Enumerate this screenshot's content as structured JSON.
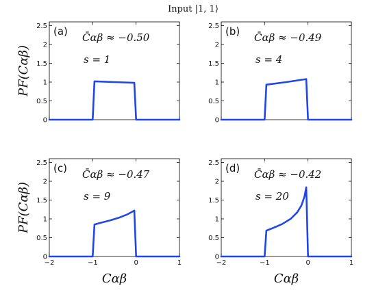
{
  "figure_title": "Input |1, 1⟩",
  "chart_data": [
    {
      "type": "line",
      "panel_label": "(a)",
      "annotation_c": "C̄αβ ≈ −0.50",
      "annotation_s": "s = 1",
      "ylabel": "PF(Cαβ)",
      "xlabel": "",
      "xlim": [
        -2,
        1
      ],
      "ylim": [
        0,
        2.6
      ],
      "xticks": [
        "−2",
        "−1",
        "0",
        "1"
      ],
      "yticks": [
        "0",
        "0.5",
        "1",
        "1.5",
        "2",
        "2.5"
      ],
      "show_xtick_labels": false,
      "series": [
        {
          "color": "#2045e8",
          "x": [
            -2,
            -1.0,
            -0.96,
            -0.5,
            -0.04,
            0.0,
            1
          ],
          "y": [
            0,
            0,
            1.02,
            1.0,
            0.98,
            0,
            0
          ]
        }
      ]
    },
    {
      "type": "line",
      "panel_label": "(b)",
      "annotation_c": "C̄αβ ≈ −0.49",
      "annotation_s": "s = 4",
      "ylabel": "",
      "xlabel": "",
      "xlim": [
        -2,
        1
      ],
      "ylim": [
        0,
        2.6
      ],
      "xticks": [
        "−2",
        "−1",
        "0",
        "1"
      ],
      "yticks": [
        "0",
        "0.5",
        "1",
        "1.5",
        "2",
        "2.5"
      ],
      "show_xtick_labels": false,
      "series": [
        {
          "color": "#2045e8",
          "x": [
            -2,
            -1.0,
            -0.96,
            -0.5,
            -0.04,
            0.0,
            1
          ],
          "y": [
            0,
            0,
            0.93,
            1.0,
            1.08,
            0,
            0
          ]
        }
      ]
    },
    {
      "type": "line",
      "panel_label": "(c)",
      "annotation_c": "C̄αβ ≈ −0.47",
      "annotation_s": "s = 9",
      "ylabel": "PF(Cαβ)",
      "xlabel": "Cαβ",
      "xlim": [
        -2,
        1
      ],
      "ylim": [
        0,
        2.6
      ],
      "xticks": [
        "−2",
        "−1",
        "0",
        "1"
      ],
      "yticks": [
        "0",
        "0.5",
        "1",
        "1.5",
        "2",
        "2.5"
      ],
      "show_xtick_labels": true,
      "series": [
        {
          "color": "#2045e8",
          "x": [
            -2,
            -1.0,
            -0.96,
            -0.8,
            -0.6,
            -0.4,
            -0.2,
            -0.04,
            0.0,
            1
          ],
          "y": [
            0,
            0,
            0.85,
            0.9,
            0.96,
            1.03,
            1.12,
            1.22,
            0,
            0
          ]
        }
      ]
    },
    {
      "type": "line",
      "panel_label": "(d)",
      "annotation_c": "C̄αβ ≈ −0.42",
      "annotation_s": "s = 20",
      "ylabel": "",
      "xlabel": "Cαβ",
      "xlim": [
        -2,
        1
      ],
      "ylim": [
        0,
        2.6
      ],
      "xticks": [
        "−2",
        "−1",
        "0",
        "1"
      ],
      "yticks": [
        "0",
        "0.5",
        "1",
        "1.5",
        "2",
        "2.5"
      ],
      "show_xtick_labels": true,
      "series": [
        {
          "color": "#2045e8",
          "x": [
            -2,
            -1.0,
            -0.96,
            -0.8,
            -0.6,
            -0.4,
            -0.25,
            -0.15,
            -0.08,
            -0.04,
            0.0,
            1
          ],
          "y": [
            0,
            0,
            0.69,
            0.76,
            0.86,
            1.0,
            1.17,
            1.36,
            1.6,
            1.84,
            0,
            0
          ]
        }
      ]
    }
  ]
}
